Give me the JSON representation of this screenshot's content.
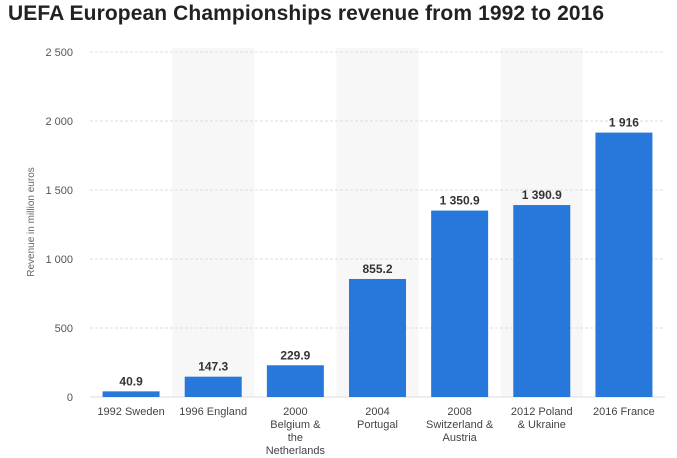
{
  "chart_data": {
    "type": "bar",
    "title": "UEFA European Championships revenue from 1992 to 2016",
    "xlabel": "",
    "ylabel": "Revenue in million euros",
    "ylim": [
      0,
      2500
    ],
    "yticks": [
      0,
      500,
      1000,
      1500,
      2000,
      2500
    ],
    "ytick_labels": [
      "0",
      "500",
      "1 000",
      "1 500",
      "2 000",
      "2 500"
    ],
    "grid": true,
    "bar_color": "#2878dc",
    "band_color": "#f7f7f7",
    "grid_color": "#dddddd",
    "categories": [
      [
        "1992 Sweden"
      ],
      [
        "1996 England"
      ],
      [
        "2000",
        "Belgium &",
        "the",
        "Netherlands"
      ],
      [
        "2004",
        "Portugal"
      ],
      [
        "2008",
        "Switzerland &",
        "Austria"
      ],
      [
        "2012 Poland",
        "& Ukraine"
      ],
      [
        "2016 France"
      ]
    ],
    "values": [
      40.9,
      147.3,
      229.9,
      855.2,
      1350.9,
      1390.9,
      1916
    ],
    "value_labels": [
      "40.9",
      "147.3",
      "229.9",
      "855.2",
      "1 350.9",
      "1 390.9",
      "1 916"
    ]
  }
}
